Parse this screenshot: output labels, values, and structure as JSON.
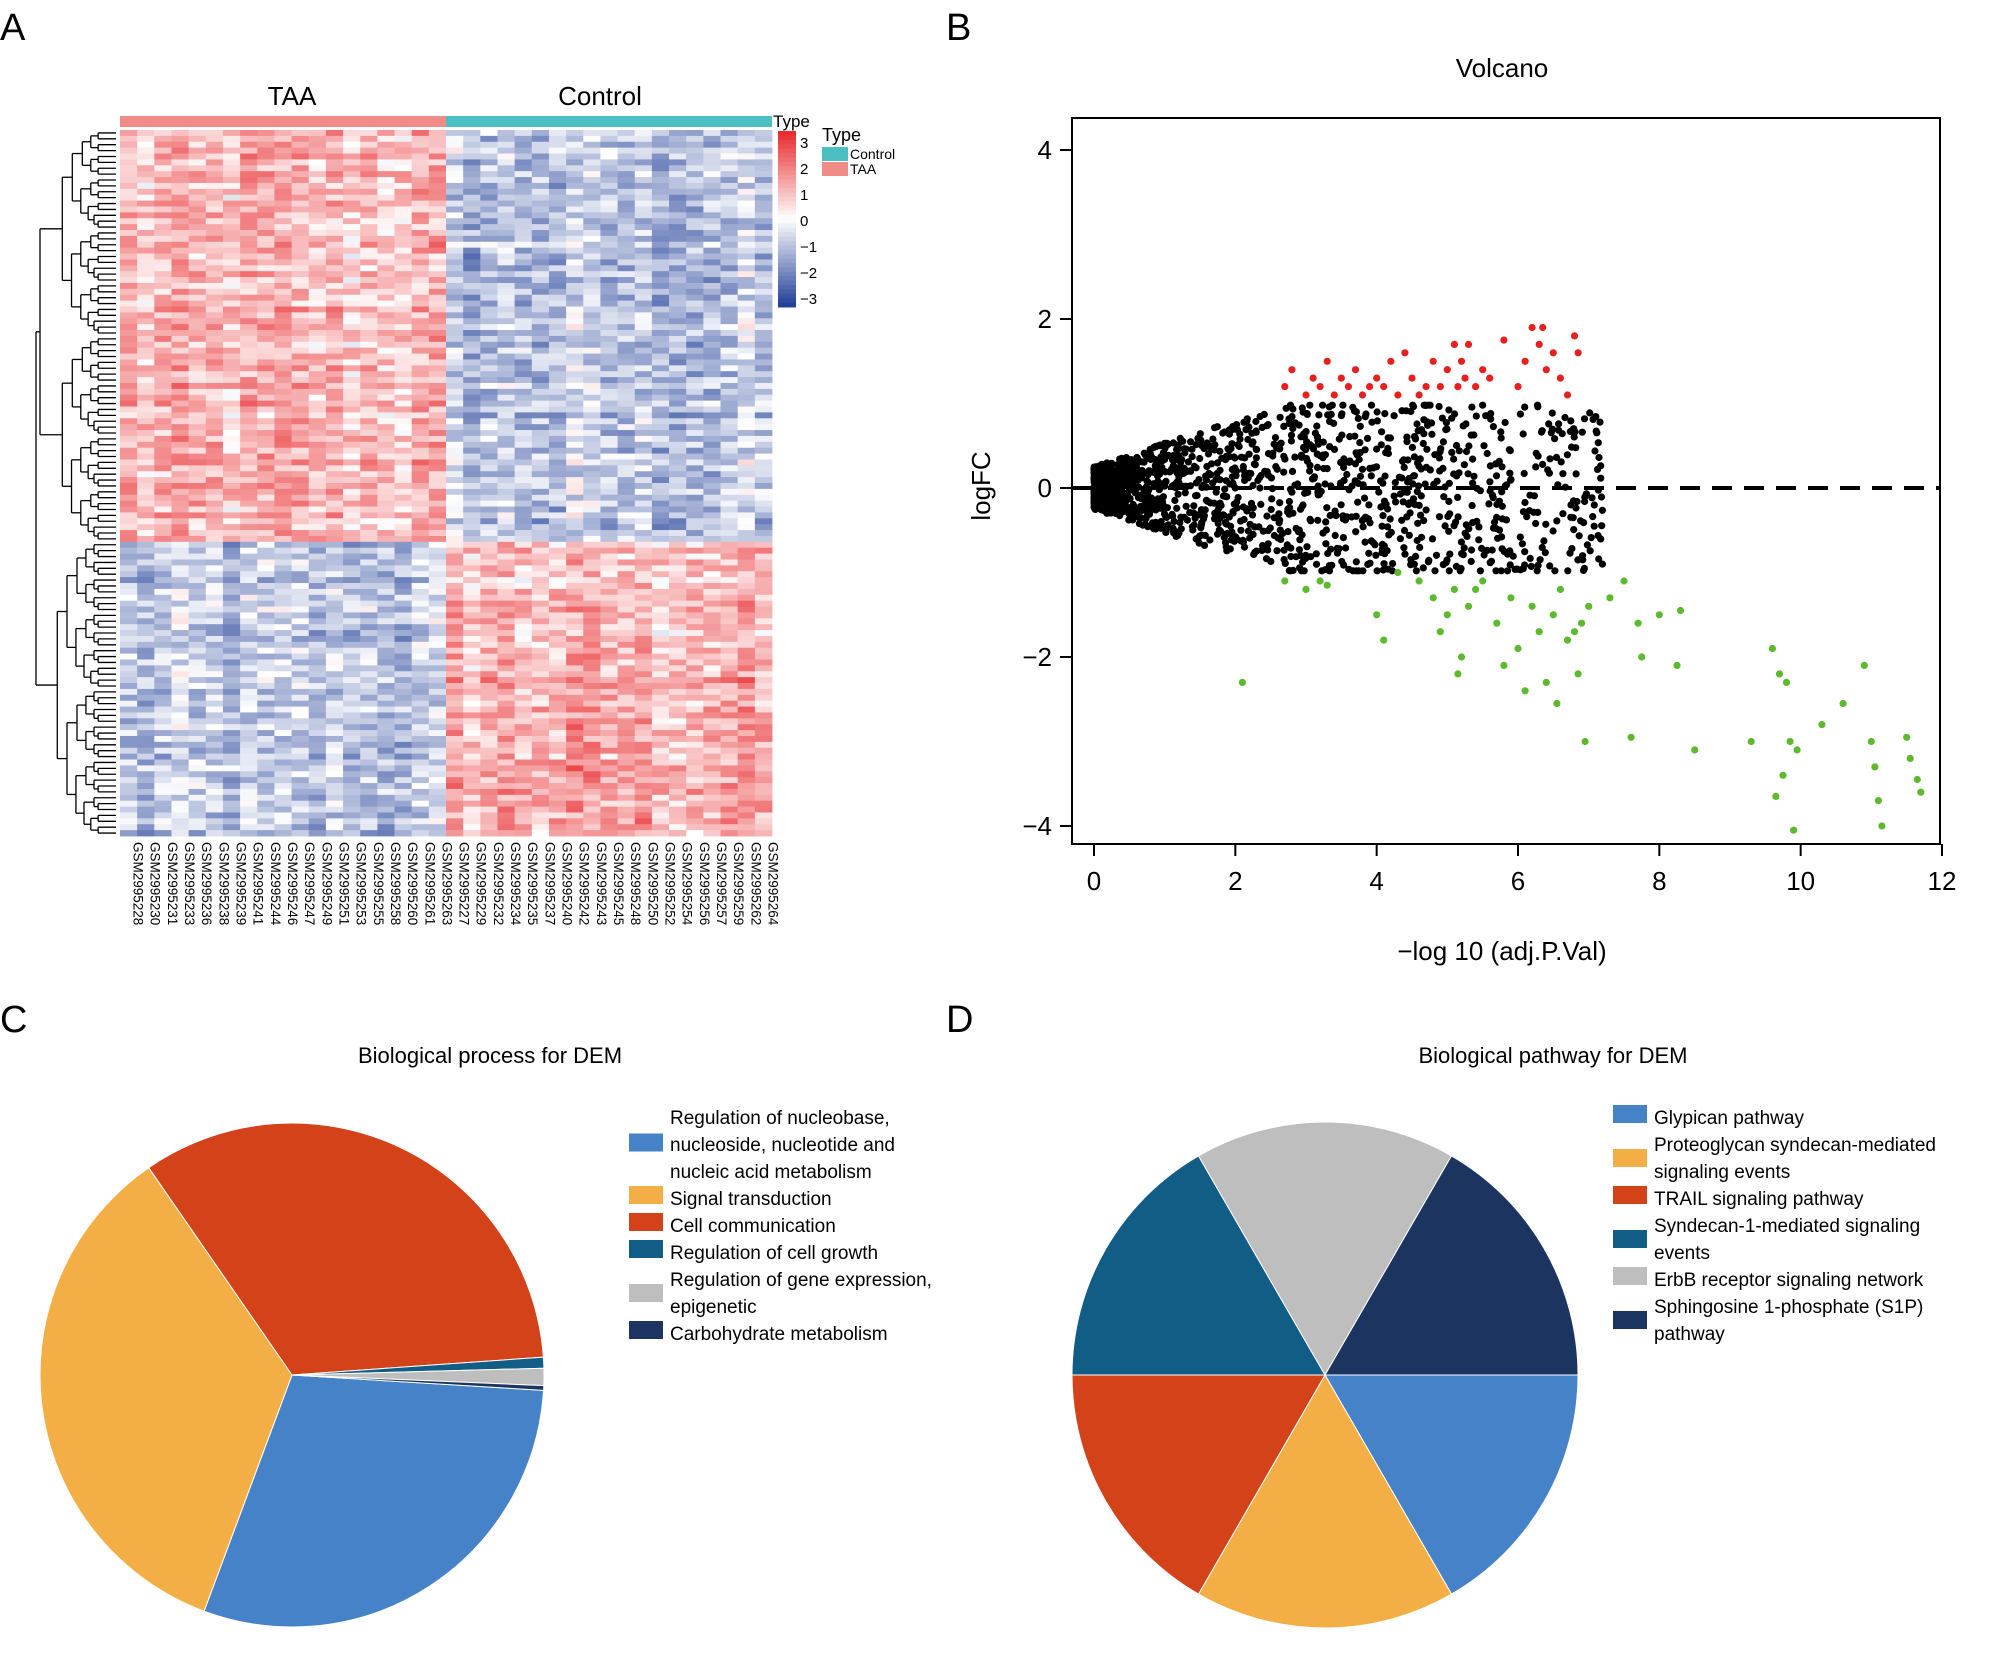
{
  "panels": {
    "A": {
      "letter": "A",
      "chart_data": {
        "type": "heatmap",
        "group_labels": [
          "TAA",
          "Control"
        ],
        "group_colors": {
          "TAA": "#F08C88",
          "Control": "#4CBFC2"
        },
        "samples_taa": [
          "GSM2995228",
          "GSM2995230",
          "GSM2995231",
          "GSM2995233",
          "GSM2995236",
          "GSM2995238",
          "GSM2995239",
          "GSM2995241",
          "GSM2995244",
          "GSM2995246",
          "GSM2995247",
          "GSM2995249",
          "GSM2995251",
          "GSM2995253",
          "GSM2995255",
          "GSM2995258",
          "GSM2995260",
          "GSM2995261",
          "GSM2995263"
        ],
        "samples_control": [
          "GSM2995227",
          "GSM2995229",
          "GSM2995232",
          "GSM2995234",
          "GSM2995235",
          "GSM2995237",
          "GSM2995240",
          "GSM2995242",
          "GSM2995243",
          "GSM2995245",
          "GSM2995248",
          "GSM2995250",
          "GSM2995252",
          "GSM2995254",
          "GSM2995256",
          "GSM2995257",
          "GSM2995259",
          "GSM2995262",
          "GSM2995264"
        ],
        "annotation_label": "Type",
        "legend_title": "Type",
        "legend_entries": [
          "Control",
          "TAA"
        ],
        "color_scale": {
          "ticks": [
            "3",
            "2",
            "1",
            "0",
            "−1",
            "−2",
            "−3"
          ],
          "high": "#E8272A",
          "mid": "#FFFFFF",
          "low": "#1E3C96"
        }
      }
    },
    "B": {
      "letter": "B",
      "chart_data": {
        "type": "scatter",
        "title": "Volcano",
        "xlabel": "−log 10 (adj.P.Val)",
        "ylabel": "logFC",
        "xlim": [
          0,
          12
        ],
        "ylim": [
          -4.2,
          4.2
        ],
        "xticks": [
          "0",
          "2",
          "4",
          "6",
          "8",
          "10",
          "12"
        ],
        "yticks": [
          "4",
          "2",
          "0",
          "−2",
          "−4"
        ],
        "reference_line_y": 0,
        "colors": {
          "up": "#E5201E",
          "down": "#5DB92E",
          "ns": "#000000"
        },
        "up": [
          [
            2.7,
            1.2
          ],
          [
            2.8,
            1.4
          ],
          [
            3.0,
            1.1
          ],
          [
            3.1,
            1.3
          ],
          [
            3.2,
            1.2
          ],
          [
            3.3,
            1.5
          ],
          [
            3.4,
            1.1
          ],
          [
            3.5,
            1.3
          ],
          [
            3.6,
            1.2
          ],
          [
            3.7,
            1.4
          ],
          [
            3.8,
            1.1
          ],
          [
            3.9,
            1.2
          ],
          [
            4.0,
            1.3
          ],
          [
            4.1,
            1.2
          ],
          [
            4.2,
            1.5
          ],
          [
            4.3,
            1.1
          ],
          [
            4.4,
            1.6
          ],
          [
            4.5,
            1.3
          ],
          [
            4.6,
            1.1
          ],
          [
            4.7,
            1.2
          ],
          [
            4.8,
            1.5
          ],
          [
            4.9,
            1.2
          ],
          [
            5.0,
            1.4
          ],
          [
            5.1,
            1.7
          ],
          [
            5.15,
            1.2
          ],
          [
            5.2,
            1.5
          ],
          [
            5.25,
            1.3
          ],
          [
            5.3,
            1.7
          ],
          [
            5.4,
            1.2
          ],
          [
            5.5,
            1.4
          ],
          [
            5.6,
            1.3
          ],
          [
            5.8,
            1.75
          ],
          [
            6.0,
            1.2
          ],
          [
            6.1,
            1.5
          ],
          [
            6.2,
            1.9
          ],
          [
            6.3,
            1.7
          ],
          [
            6.35,
            1.9
          ],
          [
            6.4,
            1.4
          ],
          [
            6.5,
            1.6
          ],
          [
            6.6,
            1.3
          ],
          [
            6.7,
            1.1
          ],
          [
            6.8,
            1.8
          ],
          [
            6.85,
            1.6
          ]
        ],
        "down": [
          [
            2.1,
            -2.3
          ],
          [
            2.7,
            -1.1
          ],
          [
            3.0,
            -1.2
          ],
          [
            3.2,
            -1.1
          ],
          [
            3.3,
            -1.15
          ],
          [
            4.0,
            -1.5
          ],
          [
            4.1,
            -1.8
          ],
          [
            4.3,
            -1.0
          ],
          [
            4.6,
            -1.1
          ],
          [
            4.8,
            -1.3
          ],
          [
            4.9,
            -1.7
          ],
          [
            5.0,
            -1.5
          ],
          [
            5.1,
            -1.2
          ],
          [
            5.15,
            -2.2
          ],
          [
            5.2,
            -2.0
          ],
          [
            5.3,
            -1.4
          ],
          [
            5.4,
            -1.2
          ],
          [
            5.5,
            -1.1
          ],
          [
            5.7,
            -1.6
          ],
          [
            5.8,
            -2.1
          ],
          [
            5.9,
            -1.3
          ],
          [
            6.0,
            -1.9
          ],
          [
            6.1,
            -2.4
          ],
          [
            6.2,
            -1.4
          ],
          [
            6.3,
            -1.7
          ],
          [
            6.4,
            -2.3
          ],
          [
            6.5,
            -1.5
          ],
          [
            6.55,
            -2.55
          ],
          [
            6.6,
            -1.2
          ],
          [
            6.7,
            -1.8
          ],
          [
            6.8,
            -1.7
          ],
          [
            6.85,
            -2.2
          ],
          [
            6.9,
            -1.6
          ],
          [
            6.95,
            -3.0
          ],
          [
            7.0,
            -1.4
          ],
          [
            7.3,
            -1.3
          ],
          [
            7.5,
            -1.1
          ],
          [
            7.6,
            -2.95
          ],
          [
            7.7,
            -1.6
          ],
          [
            7.75,
            -2.0
          ],
          [
            8.0,
            -1.5
          ],
          [
            8.25,
            -2.1
          ],
          [
            8.3,
            -1.45
          ],
          [
            8.5,
            -3.1
          ],
          [
            9.3,
            -3.0
          ],
          [
            9.6,
            -1.9
          ],
          [
            9.65,
            -3.65
          ],
          [
            9.7,
            -2.2
          ],
          [
            9.75,
            -3.4
          ],
          [
            9.8,
            -2.3
          ],
          [
            9.85,
            -3.0
          ],
          [
            9.9,
            -4.05
          ],
          [
            9.95,
            -3.1
          ],
          [
            10.3,
            -2.8
          ],
          [
            10.6,
            -2.55
          ],
          [
            10.9,
            -2.1
          ],
          [
            11.0,
            -3.0
          ],
          [
            11.05,
            -3.3
          ],
          [
            11.1,
            -3.7
          ],
          [
            11.15,
            -4.0
          ],
          [
            11.5,
            -2.95
          ],
          [
            11.55,
            -3.2
          ],
          [
            11.65,
            -3.45
          ],
          [
            11.7,
            -3.6
          ]
        ]
      }
    },
    "C": {
      "letter": "C",
      "chart_data": {
        "type": "pie",
        "title": "Biological process for DEM",
        "slices": [
          {
            "label": "Regulation of nucleobase, nucleoside, nucleotide and nucleic acid metabolism",
            "lines": [
              "Regulation of nucleobase,",
              "nucleoside, nucleotide and",
              "nucleic acid metabolism"
            ],
            "value": 29.7,
            "color": "#4682C8"
          },
          {
            "label": "Signal transduction",
            "lines": [
              "Signal transduction"
            ],
            "value": 34.7,
            "color": "#F3AF45"
          },
          {
            "label": "Cell communication",
            "lines": [
              "Cell communication"
            ],
            "value": 33.5,
            "color": "#D44219"
          },
          {
            "label": "Regulation of cell growth",
            "lines": [
              "Regulation of cell growth"
            ],
            "value": 0.7,
            "color": "#125D86"
          },
          {
            "label": "Regulation of gene expression, epigenetic",
            "lines": [
              "Regulation of gene expression,",
              "epigenetic"
            ],
            "value": 1.1,
            "color": "#BEBEBE"
          },
          {
            "label": "Carbohydrate metabolism",
            "lines": [
              "Carbohydrate metabolism"
            ],
            "value": 0.3,
            "color": "#1B3560"
          }
        ]
      }
    },
    "D": {
      "letter": "D",
      "chart_data": {
        "type": "pie",
        "title": "Biological pathway for DEM",
        "slices": [
          {
            "label": "Glypican pathway",
            "lines": [
              "Glypican pathway"
            ],
            "value": 16.667,
            "color": "#4682C8"
          },
          {
            "label": "Proteoglycan syndecan-mediated signaling events",
            "lines": [
              "Proteoglycan syndecan-mediated",
              "signaling events"
            ],
            "value": 16.667,
            "color": "#F3AF45"
          },
          {
            "label": "TRAIL signaling pathway",
            "lines": [
              "TRAIL signaling pathway"
            ],
            "value": 16.667,
            "color": "#D44219"
          },
          {
            "label": "Syndecan-1-mediated signaling events",
            "lines": [
              "Syndecan-1-mediated signaling",
              "events"
            ],
            "value": 16.667,
            "color": "#125D86"
          },
          {
            "label": "ErbB receptor signaling network",
            "lines": [
              "ErbB receptor signaling network"
            ],
            "value": 16.667,
            "color": "#BEBEBE"
          },
          {
            "label": "Sphingosine 1-phosphate (S1P) pathway",
            "lines": [
              "Sphingosine 1-phosphate (S1P)",
              "pathway"
            ],
            "value": 16.667,
            "color": "#1B3560"
          }
        ]
      }
    }
  }
}
